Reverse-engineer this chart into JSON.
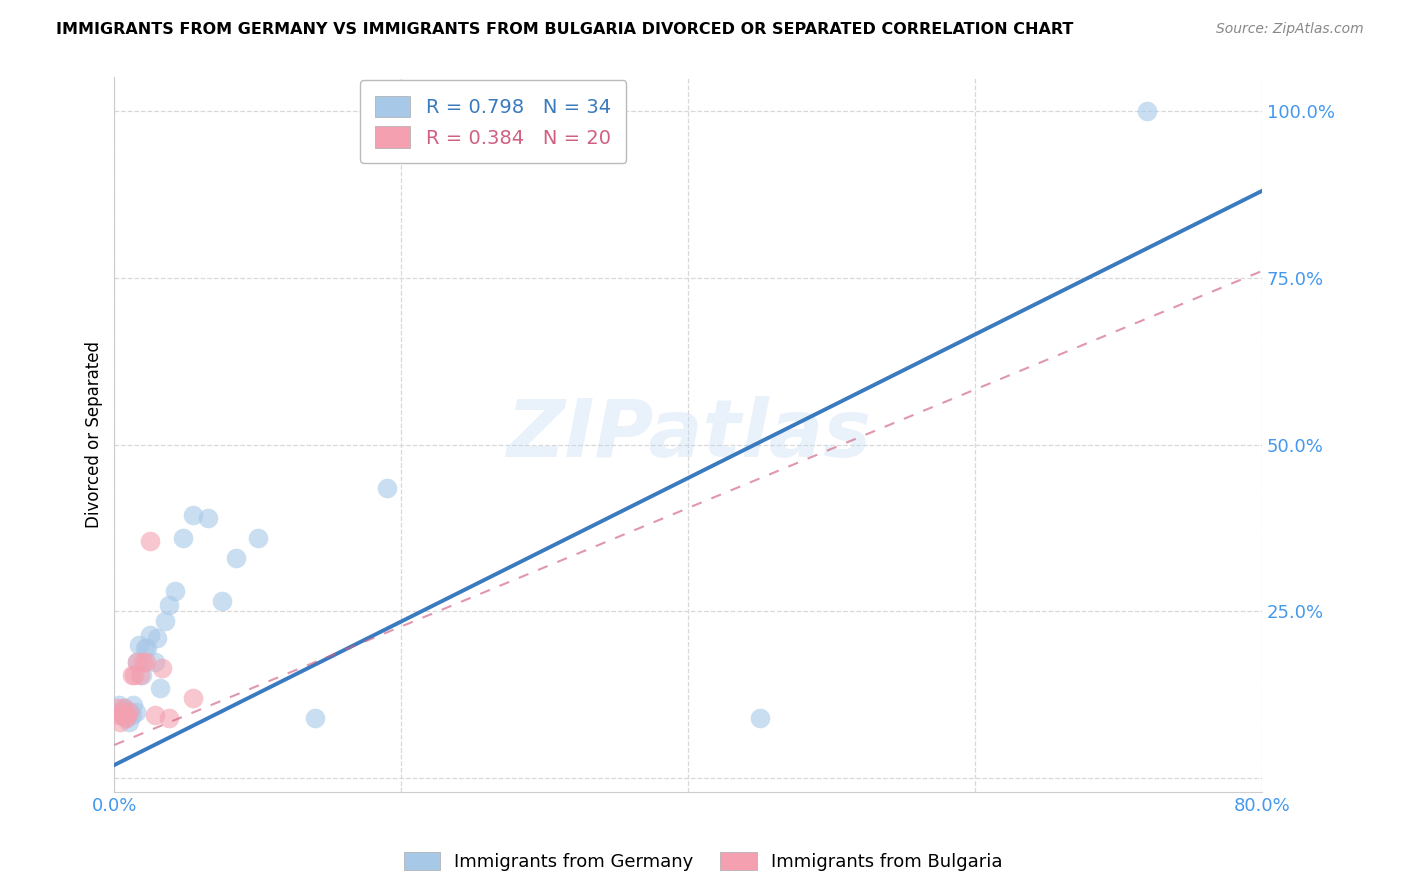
{
  "title": "IMMIGRANTS FROM GERMANY VS IMMIGRANTS FROM BULGARIA DIVORCED OR SEPARATED CORRELATION CHART",
  "source": "Source: ZipAtlas.com",
  "ylabel": "Divorced or Separated",
  "xlim": [
    0.0,
    0.8
  ],
  "ylim": [
    -0.02,
    1.05
  ],
  "xticks": [
    0.0,
    0.2,
    0.4,
    0.6,
    0.8
  ],
  "xticklabels": [
    "0.0%",
    "",
    "",
    "",
    "80.0%"
  ],
  "ytick_positions": [
    0.0,
    0.25,
    0.5,
    0.75,
    1.0
  ],
  "yticklabels": [
    "",
    "25.0%",
    "50.0%",
    "75.0%",
    "100.0%"
  ],
  "germany_r": 0.798,
  "germany_n": 34,
  "bulgaria_r": 0.384,
  "bulgaria_n": 20,
  "germany_color": "#a8c8e8",
  "bulgaria_color": "#f4a0b0",
  "germany_line_color": "#3a7abf",
  "bulgaria_line_color": "#d06080",
  "grid_color": "#d8d8d8",
  "germany_line_x0": 0.0,
  "germany_line_y0": 0.02,
  "germany_line_x1": 0.8,
  "germany_line_y1": 0.88,
  "bulgaria_line_x0": 0.0,
  "bulgaria_line_y0": 0.05,
  "bulgaria_line_x1": 0.8,
  "bulgaria_line_y1": 0.76,
  "germany_scatter_x": [
    0.003,
    0.004,
    0.005,
    0.006,
    0.007,
    0.008,
    0.009,
    0.01,
    0.011,
    0.012,
    0.013,
    0.015,
    0.016,
    0.017,
    0.019,
    0.021,
    0.023,
    0.025,
    0.028,
    0.03,
    0.032,
    0.035,
    0.038,
    0.042,
    0.048,
    0.055,
    0.065,
    0.075,
    0.085,
    0.1,
    0.14,
    0.19,
    0.45,
    0.72
  ],
  "germany_scatter_y": [
    0.11,
    0.1,
    0.095,
    0.1,
    0.105,
    0.09,
    0.095,
    0.085,
    0.1,
    0.095,
    0.11,
    0.1,
    0.175,
    0.2,
    0.155,
    0.195,
    0.195,
    0.215,
    0.175,
    0.21,
    0.135,
    0.235,
    0.26,
    0.28,
    0.36,
    0.395,
    0.39,
    0.265,
    0.33,
    0.36,
    0.09,
    0.435,
    0.09,
    1.0
  ],
  "bulgaria_scatter_x": [
    0.002,
    0.003,
    0.004,
    0.005,
    0.006,
    0.007,
    0.008,
    0.009,
    0.01,
    0.012,
    0.014,
    0.016,
    0.018,
    0.02,
    0.022,
    0.025,
    0.028,
    0.033,
    0.038,
    0.055
  ],
  "bulgaria_scatter_y": [
    0.105,
    0.095,
    0.085,
    0.1,
    0.095,
    0.105,
    0.09,
    0.095,
    0.1,
    0.155,
    0.155,
    0.175,
    0.155,
    0.175,
    0.175,
    0.355,
    0.095,
    0.165,
    0.09,
    0.12
  ],
  "watermark": "ZIPatlas",
  "tick_color": "#4499ee",
  "title_fontsize": 11.5,
  "axis_label_fontsize": 12,
  "tick_fontsize": 13,
  "legend_fontsize": 14
}
